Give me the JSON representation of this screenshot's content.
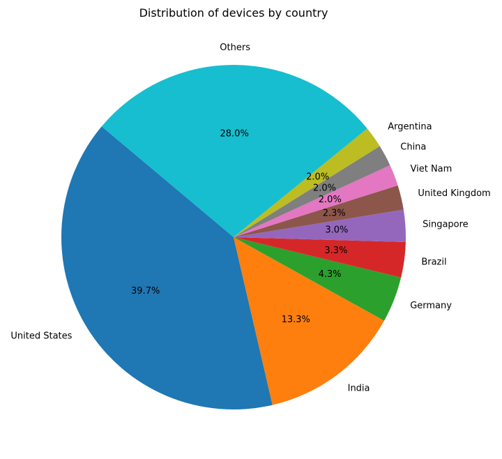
{
  "chart_data": {
    "type": "pie",
    "title": "Distribution of devices by country",
    "start_angle_deg": 140,
    "direction": "counterclockwise",
    "slices": [
      {
        "label": "United States",
        "value": 39.7,
        "pct_label": "39.7%",
        "color": "#1f77b4"
      },
      {
        "label": "India",
        "value": 13.3,
        "pct_label": "13.3%",
        "color": "#ff7f0e"
      },
      {
        "label": "Germany",
        "value": 4.3,
        "pct_label": "4.3%",
        "color": "#2ca02c"
      },
      {
        "label": "Brazil",
        "value": 3.3,
        "pct_label": "3.3%",
        "color": "#d62728"
      },
      {
        "label": "Singapore",
        "value": 3.0,
        "pct_label": "3.0%",
        "color": "#9467bd"
      },
      {
        "label": "United Kingdom",
        "value": 2.3,
        "pct_label": "2.3%",
        "color": "#8c564b"
      },
      {
        "label": "Viet Nam",
        "value": 2.0,
        "pct_label": "2.0%",
        "color": "#e377c2"
      },
      {
        "label": "China",
        "value": 2.0,
        "pct_label": "2.0%",
        "color": "#7f7f7f"
      },
      {
        "label": "Argentina",
        "value": 2.0,
        "pct_label": "2.0%",
        "color": "#bcbd22"
      },
      {
        "label": "Others",
        "value": 28.0,
        "pct_label": "28.0%",
        "color": "#17becf"
      }
    ]
  }
}
